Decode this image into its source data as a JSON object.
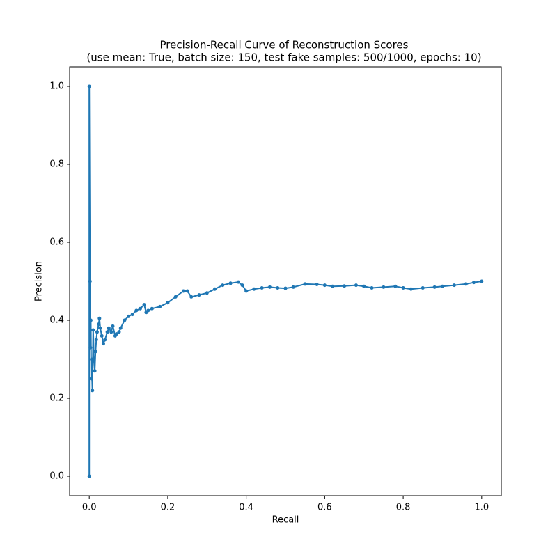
{
  "chart_data": {
    "type": "line",
    "title": "Precision-Recall Curve of Reconstruction Scores",
    "subtitle": "(use mean: True, batch size: 150, test fake samples: 500/1000, epochs: 10)",
    "x_label": "Recall",
    "y_label": "Precision",
    "color": "#1f77b4",
    "xlim": [
      -0.05,
      1.05
    ],
    "ylim": [
      -0.05,
      1.05
    ],
    "xticks": [
      {
        "value": 0,
        "label": "0.0"
      },
      0.2,
      0.4,
      0.6,
      0.8,
      {
        "value": 1,
        "label": "1.0"
      }
    ],
    "yticks": [
      {
        "value": 0,
        "label": "0.0"
      },
      0.2,
      0.4,
      0.6,
      0.8,
      {
        "value": 1,
        "label": "1.0"
      }
    ],
    "grid": false,
    "x": [
      0,
      0,
      0.002,
      0.003,
      0.004,
      0.005,
      0.006,
      0.008,
      0.01,
      0.012,
      0.014,
      0.016,
      0.018,
      0.02,
      0.024,
      0.026,
      0.028,
      0.032,
      0.036,
      0.04,
      0.046,
      0.05,
      0.056,
      0.06,
      0.066,
      0.07,
      0.076,
      0.08,
      0.09,
      0.1,
      0.11,
      0.12,
      0.13,
      0.14,
      0.145,
      0.15,
      0.16,
      0.18,
      0.2,
      0.22,
      0.24,
      0.25,
      0.26,
      0.28,
      0.3,
      0.32,
      0.34,
      0.36,
      0.38,
      0.39,
      0.4,
      0.42,
      0.44,
      0.46,
      0.48,
      0.5,
      0.52,
      0.55,
      0.58,
      0.6,
      0.62,
      0.65,
      0.68,
      0.7,
      0.72,
      0.75,
      0.78,
      0.8,
      0.82,
      0.85,
      0.88,
      0.9,
      0.93,
      0.96,
      0.98,
      1.0
    ],
    "values": [
      0,
      1.0,
      0.5,
      0.33,
      0.4,
      0.25,
      0.3,
      0.22,
      0.375,
      0.3,
      0.27,
      0.32,
      0.35,
      0.37,
      0.39,
      0.405,
      0.38,
      0.36,
      0.34,
      0.35,
      0.37,
      0.38,
      0.37,
      0.385,
      0.36,
      0.365,
      0.37,
      0.38,
      0.4,
      0.41,
      0.415,
      0.425,
      0.43,
      0.44,
      0.42,
      0.425,
      0.43,
      0.435,
      0.445,
      0.46,
      0.475,
      0.475,
      0.46,
      0.465,
      0.47,
      0.48,
      0.49,
      0.495,
      0.498,
      0.49,
      0.475,
      0.48,
      0.483,
      0.485,
      0.483,
      0.482,
      0.485,
      0.493,
      0.492,
      0.49,
      0.487,
      0.488,
      0.49,
      0.487,
      0.483,
      0.485,
      0.487,
      0.483,
      0.48,
      0.483,
      0.485,
      0.487,
      0.49,
      0.493,
      0.497,
      0.5
    ]
  }
}
